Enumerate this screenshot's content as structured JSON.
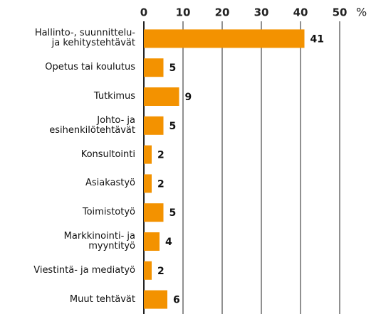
{
  "chart_data": {
    "type": "bar",
    "orientation": "horizontal",
    "categories": [
      "Hallinto-, suunnittelu-\nja kehitystehtävät",
      "Opetus tai koulutus",
      "Tutkimus",
      "Johto- ja\nesihenkilötehtävät",
      "Konsultointi",
      "Asiakastyö",
      "Toimistotyö",
      "Markkinointi- ja\nmyyntityö",
      "Viestintä- ja mediatyö",
      "Muut tehtävät"
    ],
    "values": [
      41,
      5,
      9,
      5,
      2,
      2,
      5,
      4,
      2,
      6
    ],
    "color": "#f39200",
    "xlim": [
      0,
      50
    ],
    "xticks": [
      0,
      10,
      20,
      30,
      40,
      50
    ],
    "x_unit": "%",
    "grid": true
  }
}
